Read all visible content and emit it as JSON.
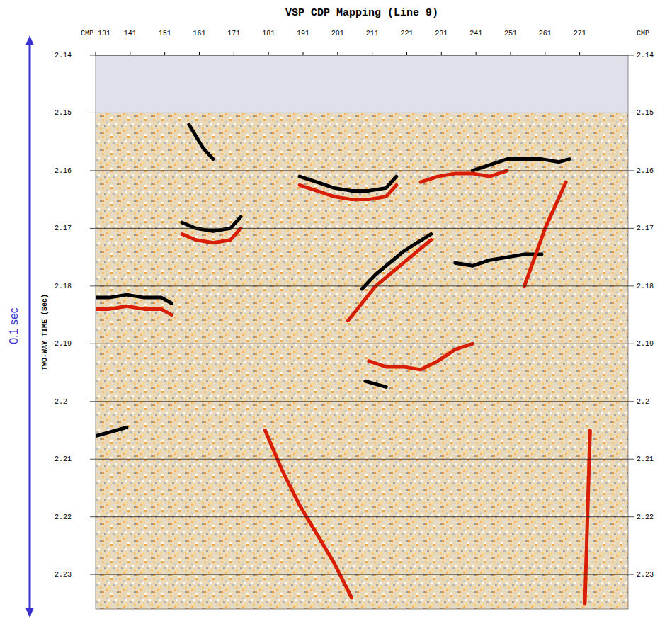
{
  "chart_data": {
    "type": "seismic",
    "title": "VSP CDP Mapping (Line 9)",
    "x_label": "CMP",
    "y_label": "TWO-WAY TIME (Sec)",
    "annotation": "0.1 sec",
    "xlim": [
      131,
      285
    ],
    "ylim": [
      2.14,
      2.236
    ],
    "record_start": 2.15,
    "grid": true,
    "xticks": [
      {
        "value": 131,
        "label": "CMP 131"
      },
      141,
      151,
      161,
      171,
      181,
      191,
      201,
      211,
      221,
      231,
      241,
      251,
      261,
      271
    ],
    "yticks": [
      2.14,
      2.15,
      2.16,
      2.17,
      2.18,
      2.19,
      2.2,
      2.21,
      2.22,
      2.23
    ],
    "series": [
      {
        "color": "#000000",
        "x": [
          156,
          160,
          165,
          170,
          173
        ],
        "values": [
          2.169,
          2.17,
          2.1705,
          2.17,
          2.168
        ]
      },
      {
        "color": "#d81e05",
        "x": [
          156,
          160,
          165,
          170,
          173
        ],
        "values": [
          2.171,
          2.172,
          2.1725,
          2.172,
          2.17
        ]
      },
      {
        "color": "#000000",
        "x": [
          131,
          135,
          140,
          145,
          150,
          153
        ],
        "values": [
          2.182,
          2.182,
          2.1815,
          2.182,
          2.182,
          2.183
        ]
      },
      {
        "color": "#d81e05",
        "x": [
          131,
          135,
          140,
          145,
          150,
          153
        ],
        "values": [
          2.184,
          2.184,
          2.1835,
          2.184,
          2.184,
          2.185
        ]
      },
      {
        "color": "#000000",
        "x": [
          190,
          195,
          200,
          205,
          210,
          215,
          218
        ],
        "values": [
          2.161,
          2.162,
          2.163,
          2.1635,
          2.1635,
          2.163,
          2.161
        ]
      },
      {
        "color": "#d81e05",
        "x": [
          190,
          195,
          200,
          205,
          210,
          215,
          218
        ],
        "values": [
          2.1625,
          2.1635,
          2.1645,
          2.165,
          2.165,
          2.1645,
          2.1625
        ]
      },
      {
        "color": "#000000",
        "x": [
          240,
          245,
          250,
          255,
          260,
          265,
          268
        ],
        "values": [
          2.16,
          2.159,
          2.158,
          2.158,
          2.158,
          2.1585,
          2.158
        ]
      },
      {
        "color": "#d81e05",
        "x": [
          225,
          230,
          235,
          240,
          245,
          250
        ],
        "values": [
          2.162,
          2.161,
          2.1605,
          2.1605,
          2.161,
          2.16
        ]
      },
      {
        "color": "#d81e05",
        "x": [
          204,
          208,
          212,
          216,
          220,
          224,
          228
        ],
        "values": [
          2.186,
          2.183,
          2.18,
          2.178,
          2.176,
          2.174,
          2.172
        ]
      },
      {
        "color": "#000000",
        "x": [
          208,
          212,
          216,
          220,
          224,
          228
        ],
        "values": [
          2.1805,
          2.178,
          2.176,
          2.174,
          2.1725,
          2.171
        ]
      },
      {
        "color": "#000000",
        "x": [
          235,
          240,
          245,
          250,
          255,
          260
        ],
        "values": [
          2.176,
          2.1765,
          2.1755,
          2.175,
          2.1745,
          2.1745
        ]
      },
      {
        "color": "#d81e05",
        "x": [
          210,
          215,
          220,
          225,
          230,
          235,
          240
        ],
        "values": [
          2.193,
          2.194,
          2.194,
          2.1945,
          2.193,
          2.191,
          2.19
        ]
      },
      {
        "color": "#000000",
        "x": [
          209,
          212,
          215
        ],
        "values": [
          2.1965,
          2.197,
          2.1975
        ]
      },
      {
        "color": "#d81e05",
        "x": [
          274,
          273.5,
          273,
          272.5
        ],
        "values": [
          2.205,
          2.215,
          2.225,
          2.235
        ]
      },
      {
        "color": "#d81e05",
        "x": [
          180,
          185,
          190,
          195,
          200,
          205
        ],
        "values": [
          2.205,
          2.212,
          2.218,
          2.223,
          2.228,
          2.234
        ]
      },
      {
        "color": "#000000",
        "x": [
          131,
          134,
          137,
          140
        ],
        "values": [
          2.206,
          2.2055,
          2.205,
          2.2045
        ]
      },
      {
        "color": "#d81e05",
        "x": [
          255,
          258,
          261,
          264,
          267
        ],
        "values": [
          2.18,
          2.175,
          2.17,
          2.166,
          2.162
        ]
      },
      {
        "color": "#000000",
        "x": [
          158,
          162,
          165
        ],
        "values": [
          2.152,
          2.156,
          2.158
        ]
      }
    ]
  }
}
